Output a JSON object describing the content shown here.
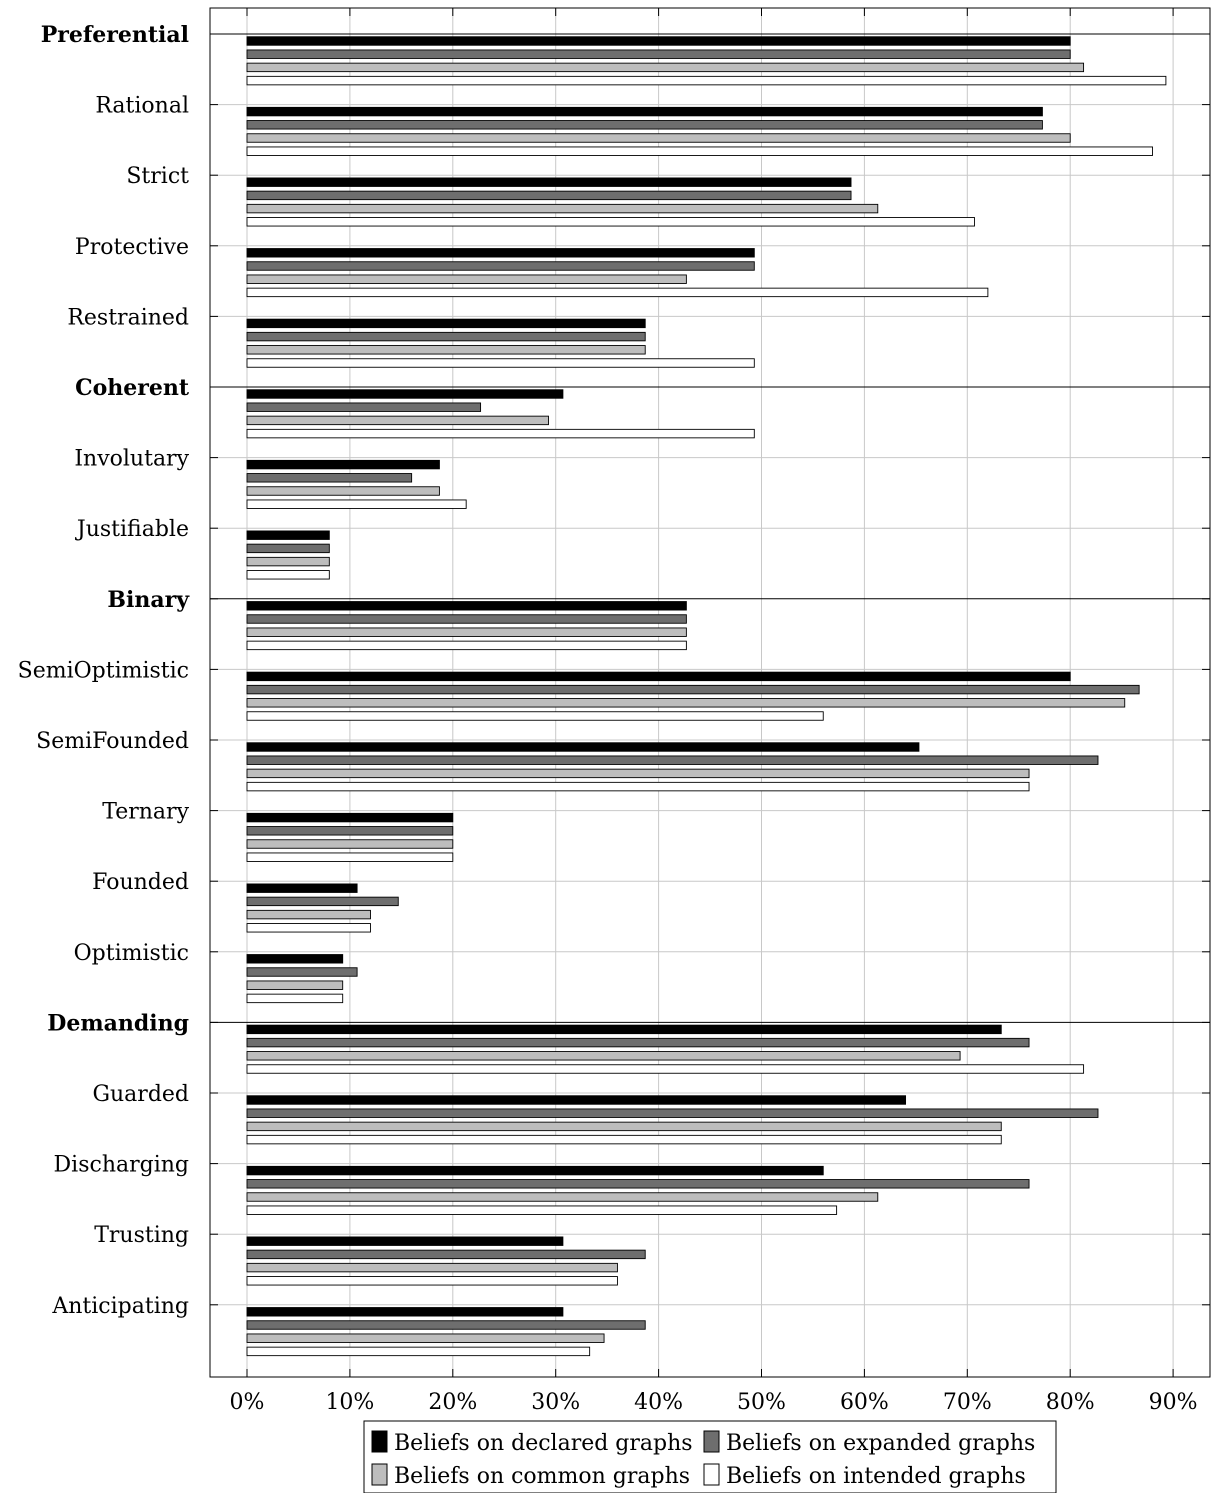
{
  "chart_data": {
    "type": "bar",
    "orientation": "horizontal",
    "xlim": [
      0,
      90
    ],
    "x_ticks": [
      0,
      10,
      20,
      30,
      40,
      50,
      60,
      70,
      80,
      90
    ],
    "x_tick_labels": [
      "0%",
      "10%",
      "20%",
      "30%",
      "40%",
      "50%",
      "60%",
      "70%",
      "80%",
      "90%"
    ],
    "grid": true,
    "legend_position": "bottom",
    "categories": [
      "Preferential",
      "Rational",
      "Strict",
      "Protective",
      "Restrained",
      "Coherent",
      "Involutary",
      "Justifiable",
      "Binary",
      "SemiOptimistic",
      "SemiFounded",
      "Ternary",
      "Founded",
      "Optimistic",
      "Demanding",
      "Guarded",
      "Discharging",
      "Trusting",
      "Anticipating"
    ],
    "group_headers": [
      "Preferential",
      "Coherent",
      "Binary",
      "Demanding"
    ],
    "series": [
      {
        "name": "Beliefs on declared graphs",
        "color": "#000000",
        "values": [
          80,
          77.3,
          58.7,
          49.3,
          38.7,
          30.7,
          18.7,
          8,
          42.7,
          80,
          65.3,
          20,
          10.7,
          9.3,
          73.3,
          64,
          56,
          30.7,
          30.7
        ]
      },
      {
        "name": "Beliefs on expanded graphs",
        "color": "#6e6e6e",
        "values": [
          80,
          77.3,
          58.7,
          49.3,
          38.7,
          22.7,
          16,
          8,
          42.7,
          86.7,
          82.7,
          20,
          14.7,
          10.7,
          76,
          82.7,
          76,
          38.7,
          38.7
        ]
      },
      {
        "name": "Beliefs on common graphs",
        "color": "#bdbdbd",
        "values": [
          81.3,
          80,
          61.3,
          42.7,
          38.7,
          29.3,
          18.7,
          8,
          42.7,
          85.3,
          76,
          20,
          12,
          9.3,
          69.3,
          73.3,
          61.3,
          36,
          34.7
        ]
      },
      {
        "name": "Beliefs on intended graphs",
        "color": "#ffffff",
        "values": [
          89.3,
          88,
          70.7,
          72,
          49.3,
          49.3,
          21.3,
          8,
          42.7,
          56,
          76,
          20,
          12,
          9.3,
          81.3,
          73.3,
          57.3,
          36,
          33.3
        ]
      }
    ]
  }
}
